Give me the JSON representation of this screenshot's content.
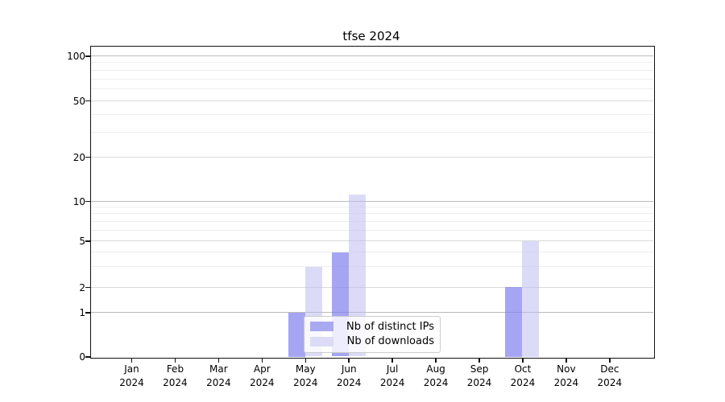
{
  "title": "tfse 2024",
  "chart_data": {
    "type": "bar",
    "title": "tfse 2024",
    "categories": [
      "Jan 2024",
      "Feb 2024",
      "Mar 2024",
      "Apr 2024",
      "May 2024",
      "Jun 2024",
      "Jul 2024",
      "Aug 2024",
      "Sep 2024",
      "Oct 2024",
      "Nov 2024",
      "Dec 2024"
    ],
    "series": [
      {
        "name": "Nb of distinct IPs",
        "color": "rgba(130,130,238,0.72)",
        "solid_color": "#a9a9f2",
        "values": [
          0,
          0,
          0,
          0,
          1,
          4,
          0,
          0,
          0,
          2,
          0,
          0
        ]
      },
      {
        "name": "Nb of downloads",
        "color": "rgba(190,190,242,0.55)",
        "solid_color": "#dcdcf6",
        "values": [
          0,
          0,
          0,
          0,
          3,
          11,
          0,
          0,
          0,
          5,
          0,
          0
        ]
      }
    ],
    "y_ticks": [
      0,
      1,
      2,
      5,
      10,
      20,
      50,
      100
    ],
    "y_major_gridlines": [
      1,
      10,
      100
    ],
    "y_mid_gridlines": [
      2,
      5,
      20,
      50
    ],
    "y_minor_gridlines": [
      3,
      4,
      6,
      7,
      8,
      9,
      30,
      40,
      60,
      70,
      80,
      90
    ],
    "y_scale": "symlog (linear 0-1, log above)",
    "ylim": [
      0,
      116
    ],
    "grid": true,
    "legend_position": "inside lower center"
  },
  "legend": {
    "items": [
      {
        "label": "Nb of distinct IPs"
      },
      {
        "label": "Nb of downloads"
      }
    ]
  },
  "colors": {
    "bar_distinct_ips": "#a9a9f2",
    "bar_downloads": "#dcdcf6",
    "grid_major": "#b9b9b9",
    "grid_mid": "#dadada",
    "grid_minor": "#eeeeee",
    "spine": "#111111",
    "background": "#ffffff"
  }
}
